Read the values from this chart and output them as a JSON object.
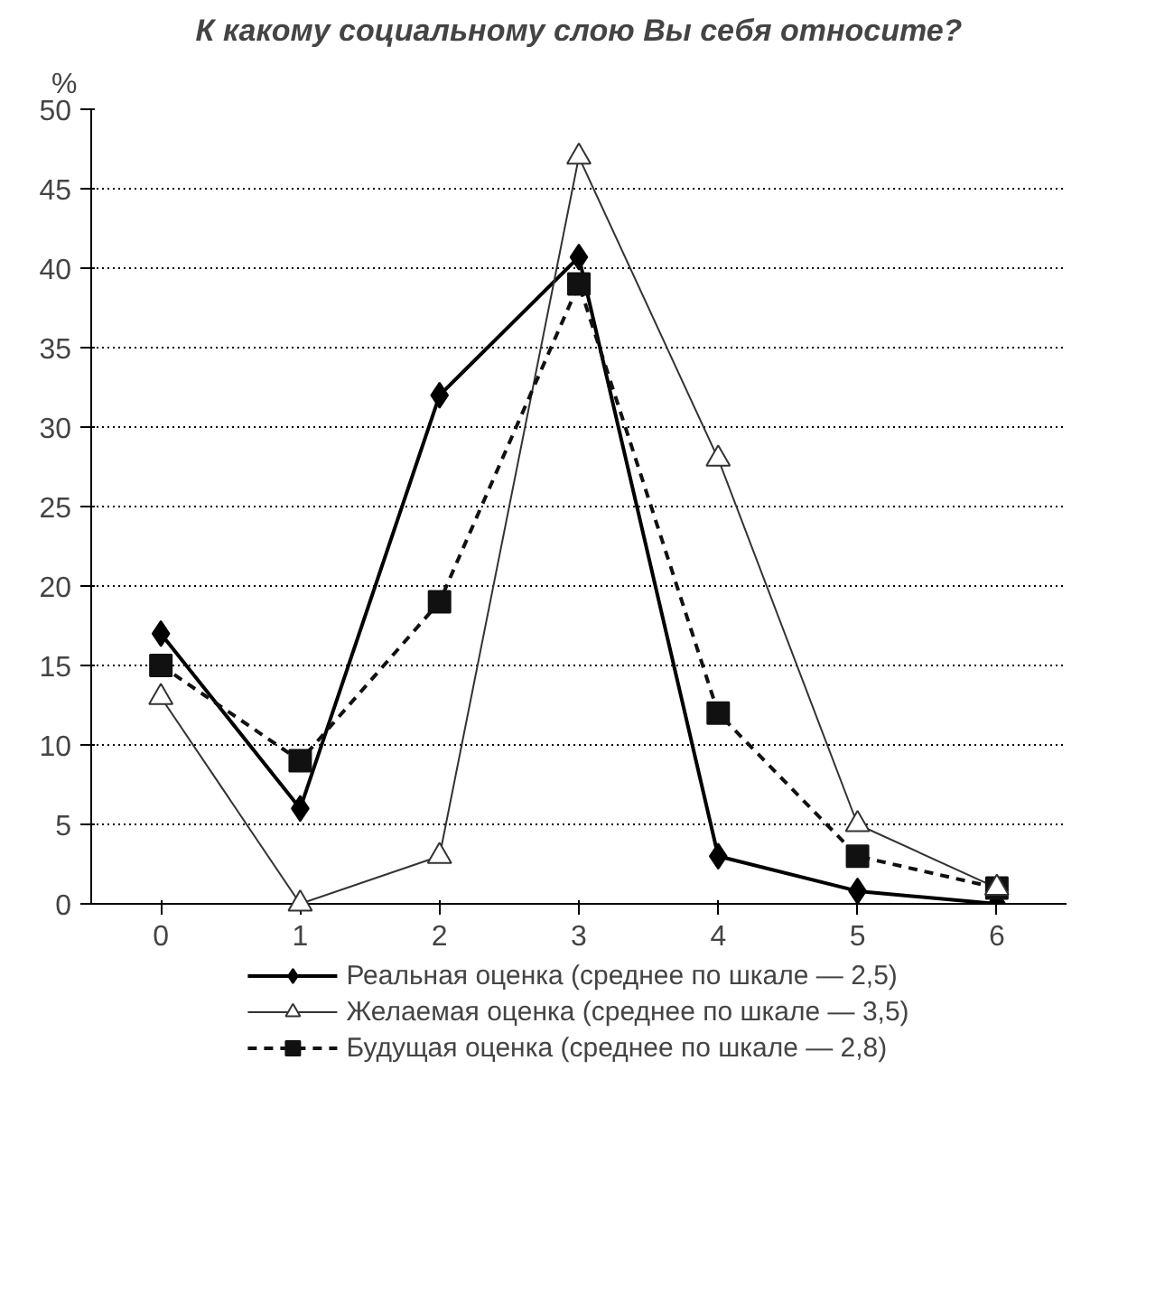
{
  "chart_data": {
    "type": "line",
    "title": "К какому социальному слою Вы себя относите?",
    "ylabel": "%",
    "categories": [
      "0",
      "1",
      "2",
      "3",
      "4",
      "5",
      "6"
    ],
    "series": [
      {
        "name": "Реальная оценка (среднее по шкале — 2,5)",
        "color": "#000000",
        "marker": "diamond",
        "line_style": "solid",
        "values": [
          17,
          6,
          32,
          40.7,
          3,
          0.8,
          0
        ]
      },
      {
        "name": "Желаемая оценка (среднее по шкале — 3,5)",
        "color": "#333333",
        "marker": "triangle",
        "line_style": "solid",
        "values": [
          13,
          0,
          3,
          47,
          28,
          5,
          1
        ]
      },
      {
        "name": "Будущая оценка (среднее по шкале — 2,8)",
        "color": "#111111",
        "marker": "square",
        "line_style": "dashed",
        "values": [
          15,
          9,
          19,
          39,
          12,
          3,
          1
        ]
      }
    ],
    "ylim": [
      0,
      50
    ],
    "yticks": [
      0,
      5,
      10,
      15,
      20,
      25,
      30,
      35,
      40,
      45,
      50
    ],
    "grid": "y",
    "legend": "bottom"
  }
}
